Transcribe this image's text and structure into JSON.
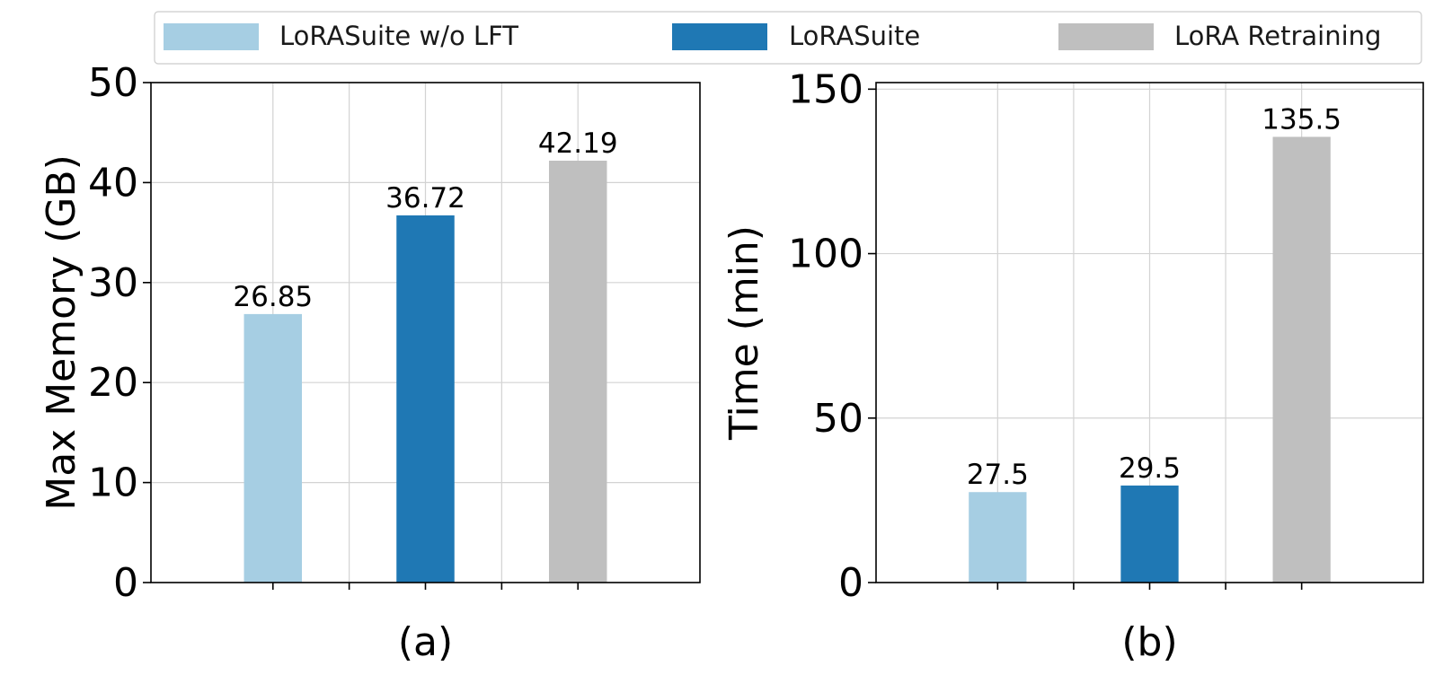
{
  "legend": {
    "items": [
      {
        "label": "LoRASuite w/o LFT",
        "color": "#a6cee3"
      },
      {
        "label": "LoRASuite",
        "color": "#1f78b4"
      },
      {
        "label": "LoRA Retraining",
        "color": "#bfbfbf"
      }
    ]
  },
  "chart_data": [
    {
      "type": "bar",
      "title": "",
      "xlabel": "(a)",
      "ylabel": "Max Memory (GB)",
      "categories": [
        "LoRASuite w/o LFT",
        "LoRASuite",
        "LoRA Retraining"
      ],
      "values": [
        26.85,
        36.72,
        42.19
      ],
      "value_labels": [
        "26.85",
        "36.72",
        "42.19"
      ],
      "colors": [
        "#a6cee3",
        "#1f78b4",
        "#bfbfbf"
      ],
      "ylim": [
        0,
        50
      ],
      "yticks": [
        0,
        10,
        20,
        30,
        40,
        50
      ],
      "ytick_labels": [
        "0",
        "10",
        "20",
        "30",
        "40",
        "50"
      ],
      "grid": true
    },
    {
      "type": "bar",
      "title": "",
      "xlabel": "(b)",
      "ylabel": "Time (min)",
      "categories": [
        "LoRASuite w/o LFT",
        "LoRASuite",
        "LoRA Retraining"
      ],
      "values": [
        27.5,
        29.5,
        135.5
      ],
      "value_labels": [
        "27.5",
        "29.5",
        "135.5"
      ],
      "colors": [
        "#a6cee3",
        "#1f78b4",
        "#bfbfbf"
      ],
      "ylim": [
        0,
        152
      ],
      "yticks": [
        0,
        50,
        100,
        150
      ],
      "ytick_labels": [
        "0",
        "50",
        "100",
        "150"
      ],
      "grid": true
    }
  ]
}
